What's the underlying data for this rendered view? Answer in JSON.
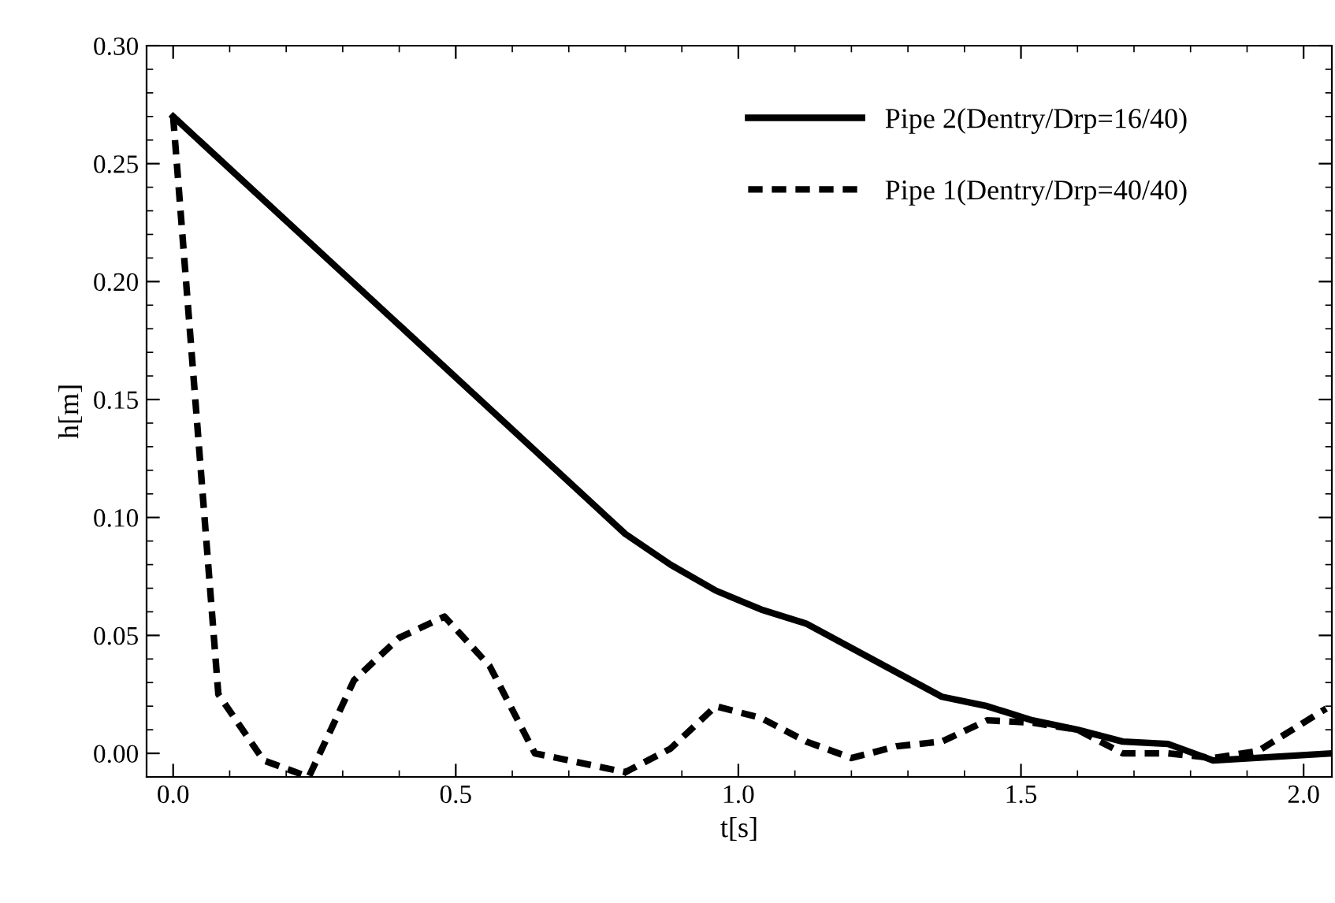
{
  "chart_data": {
    "type": "line",
    "xlabel": "t[s]",
    "ylabel": "h[m]",
    "xlim": [
      -0.047,
      2.05
    ],
    "ylim": [
      -0.01,
      0.3
    ],
    "xticks": [
      {
        "value": 0,
        "label": "0.0"
      },
      0.5,
      {
        "value": 1,
        "label": "1.0"
      },
      1.5,
      {
        "value": 2,
        "label": "2.0"
      }
    ],
    "yticks": [
      {
        "value": 0,
        "label": "0.00"
      },
      0.05,
      {
        "value": 0.1,
        "label": "0.10"
      },
      0.15,
      {
        "value": 0.2,
        "label": "0.20"
      },
      0.25,
      {
        "value": 0.3,
        "label": "0.30"
      }
    ],
    "grid": false,
    "legend": "top right",
    "series": [
      {
        "name": "Pipe 2(Dentry/Drp=16/40)",
        "color": "#000000",
        "line_style": "solid",
        "x": [
          0,
          0.8,
          0.88,
          0.96,
          1.04,
          1.12,
          1.36,
          1.44,
          1.52,
          1.6,
          1.68,
          1.76,
          1.84,
          2.05
        ],
        "values": [
          0.27,
          0.093,
          0.08,
          0.069,
          0.061,
          0.055,
          0.024,
          0.02,
          0.014,
          0.01,
          0.005,
          0.004,
          -0.003,
          0.0
        ]
      },
      {
        "name": "Pipe 1(Dentry/Drp=40/40)",
        "color": "#000000",
        "line_style": "dotted",
        "x": [
          0,
          0.08,
          0.16,
          0.24,
          0.32,
          0.4,
          0.48,
          0.56,
          0.64,
          0.8,
          0.88,
          0.96,
          1.04,
          1.12,
          1.2,
          1.28,
          1.36,
          1.44,
          1.52,
          1.6,
          1.68,
          1.76,
          1.84,
          1.92,
          2.04
        ],
        "values": [
          0.27,
          0.025,
          -0.003,
          -0.01,
          0.031,
          0.049,
          0.058,
          0.037,
          0.0,
          -0.008,
          0.002,
          0.02,
          0.015,
          0.005,
          -0.002,
          0.003,
          0.005,
          0.014,
          0.013,
          0.01,
          0.0,
          0.0,
          -0.002,
          0.001,
          0.019
        ]
      }
    ]
  }
}
